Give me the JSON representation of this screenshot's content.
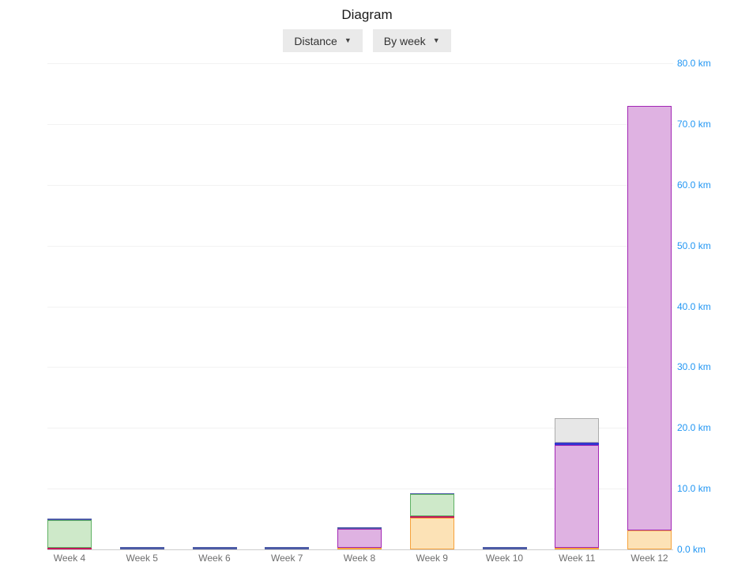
{
  "page": {
    "title": "Diagram"
  },
  "controls": {
    "metric_dropdown": {
      "label": "Distance",
      "caret": "▼"
    },
    "grouping_dropdown": {
      "label": "By week",
      "caret": "▼"
    }
  },
  "chart_data": {
    "type": "bar",
    "stacked": true,
    "title": "Diagram",
    "xlabel": "",
    "ylabel": "Distance",
    "unit": "km",
    "grid": true,
    "legend_position": "none",
    "yaxis": {
      "min": 0,
      "max": 80,
      "step": 10,
      "tick_labels": [
        "0.0 km",
        "10.0 km",
        "20.0 km",
        "30.0 km",
        "40.0 km",
        "50.0 km",
        "60.0 km",
        "70.0 km",
        "80.0 km"
      ]
    },
    "categories": [
      "Week 4",
      "Week 5",
      "Week 6",
      "Week 7",
      "Week 8",
      "Week 9",
      "Week 10",
      "Week 11",
      "Week 12"
    ],
    "series": [
      {
        "name": "orange",
        "values": [
          0,
          0,
          0,
          0,
          0.2,
          5.2,
          0,
          0.2,
          3.1
        ]
      },
      {
        "name": "red",
        "values": [
          0.2,
          0,
          0,
          0,
          0,
          0.2,
          0,
          0,
          0
        ]
      },
      {
        "name": "green",
        "values": [
          4.6,
          0,
          0,
          0,
          0,
          3.7,
          0,
          0,
          0
        ]
      },
      {
        "name": "purple",
        "values": [
          0,
          0,
          0,
          0,
          3.2,
          0,
          0,
          17.0,
          69.9
        ]
      },
      {
        "name": "navy",
        "values": [
          0.3,
          0.4,
          0.4,
          0.4,
          0.25,
          0.2,
          0.4,
          0,
          0
        ]
      },
      {
        "name": "blue",
        "values": [
          0,
          0,
          0,
          0,
          0,
          0,
          0,
          0.4,
          0
        ]
      },
      {
        "name": "gray",
        "values": [
          0,
          0,
          0,
          0,
          0,
          0,
          0,
          4.0,
          0
        ]
      }
    ],
    "totals": [
      5.1,
      0.4,
      0.4,
      0.4,
      3.65,
      9.3,
      0.4,
      21.6,
      73.0
    ],
    "colors": {
      "orange": {
        "fill": "#FCE2B6",
        "border": "#F6A23B"
      },
      "red": {
        "fill": "#C2185B",
        "border": "#C2185B"
      },
      "green": {
        "fill": "#CEE9C9",
        "border": "#5FB163"
      },
      "purple": {
        "fill": "#DFB2E2",
        "border": "#A227B5"
      },
      "navy": {
        "fill": "#4C5BA6",
        "border": "#4C5BA6"
      },
      "blue": {
        "fill": "#3434CE",
        "border": "#3434CE"
      },
      "gray": {
        "fill": "#E7E7E7",
        "border": "#ABABAB"
      },
      "axis_label": "#2196F3",
      "category_label": "#6e6e6e",
      "gridline": "#f2f2f2",
      "baseline": "#cccccc"
    }
  }
}
